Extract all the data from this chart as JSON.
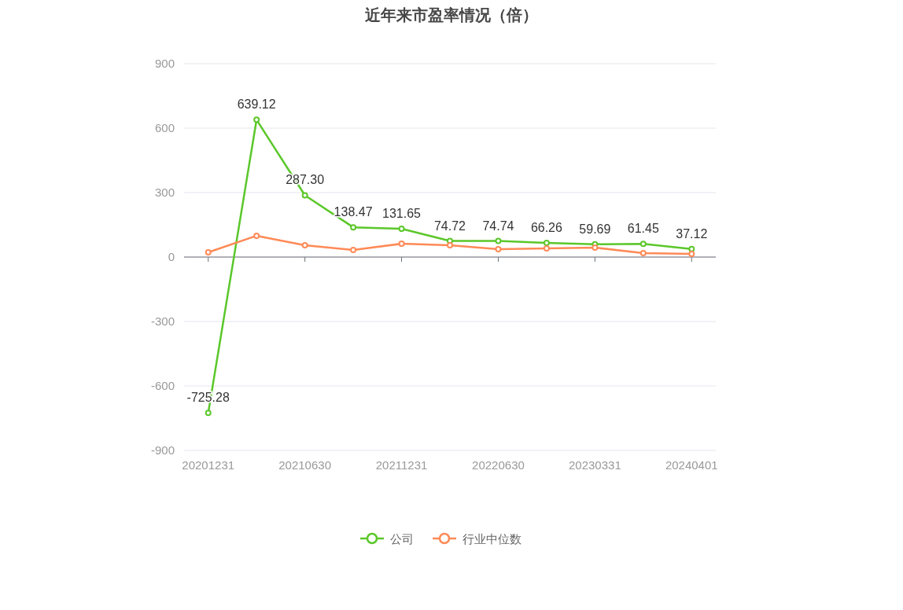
{
  "chart_data": {
    "type": "line",
    "title": "近年来市盈率情况（倍）",
    "categories": [
      "20201231",
      null,
      "20210630",
      null,
      "20211231",
      null,
      "20220630",
      null,
      "20230331",
      null,
      "20240401"
    ],
    "series": [
      {
        "name": "公司",
        "color": "#5bc72a",
        "values": [
          -725.28,
          639.12,
          287.3,
          138.47,
          131.65,
          74.72,
          74.74,
          66.26,
          59.69,
          61.45,
          37.12
        ],
        "value_labels": [
          "-725.28",
          "639.12",
          "287.30",
          "138.47",
          "131.65",
          "74.72",
          "74.74",
          "66.26",
          "59.69",
          "61.45",
          "37.12"
        ]
      },
      {
        "name": "行业中位数",
        "color": "#ff8a57",
        "values": [
          22,
          99,
          55,
          33,
          62,
          55,
          37,
          40,
          44,
          18,
          15
        ]
      }
    ],
    "ylim": [
      -900,
      900
    ],
    "yticks": [
      -900,
      -600,
      -300,
      0,
      300,
      600,
      900
    ],
    "grid": "y",
    "legend": "bottom",
    "marker": "circle",
    "line_style": "solid"
  }
}
